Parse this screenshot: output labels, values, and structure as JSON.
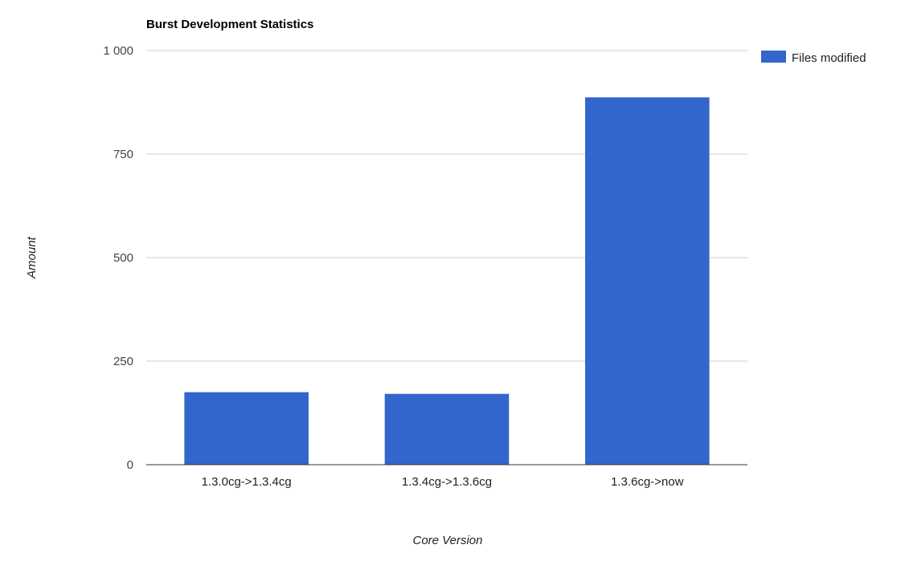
{
  "chart_data": {
    "type": "bar",
    "title": "Burst Development Statistics",
    "xlabel": "Core Version",
    "ylabel": "Amount",
    "categories": [
      "1.3.0cg->1.3.4cg",
      "1.3.4cg->1.3.6cg",
      "1.3.6cg->now"
    ],
    "series": [
      {
        "name": "Files modified",
        "values": [
          175,
          171,
          887
        ],
        "color": "#3366cc"
      }
    ],
    "ylim": [
      0,
      1000
    ],
    "yticks": [
      0,
      250,
      500,
      750,
      1000
    ],
    "ytick_labels": [
      "0",
      "250",
      "500",
      "750",
      "1 000"
    ],
    "grid": true,
    "legend_position": "top-right"
  }
}
